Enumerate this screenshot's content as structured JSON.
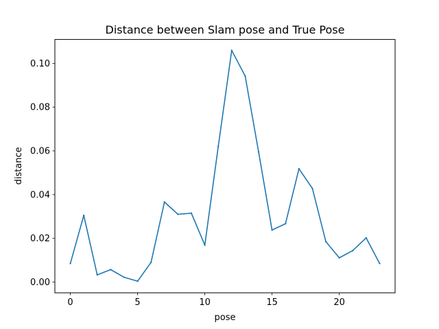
{
  "chart_data": {
    "type": "line",
    "title": "Distance between Slam pose and True Pose",
    "xlabel": "pose",
    "ylabel": "distance",
    "xlim": [
      -1.15,
      24.15
    ],
    "ylim": [
      -0.0049,
      0.1109
    ],
    "grid": false,
    "legend": "none",
    "x_ticks": [
      0,
      5,
      10,
      15,
      20
    ],
    "x_tick_labels": [
      "0",
      "5",
      "10",
      "15",
      "20"
    ],
    "y_ticks": [
      0.0,
      0.02,
      0.04,
      0.06,
      0.08,
      0.1
    ],
    "y_tick_labels": [
      "0.00",
      "0.02",
      "0.04",
      "0.06",
      "0.08",
      "0.10"
    ],
    "series": [
      {
        "color": "#1f77b4",
        "x": [
          0,
          1,
          2,
          3,
          4,
          5,
          6,
          7,
          8,
          9,
          10,
          11,
          12,
          13,
          14,
          15,
          16,
          17,
          18,
          19,
          20,
          21,
          22,
          23
        ],
        "y": [
          0.0085,
          0.0305,
          0.0033,
          0.0057,
          0.0022,
          0.0004,
          0.009,
          0.0366,
          0.031,
          0.0315,
          0.0169,
          0.062,
          0.1059,
          0.0942,
          0.0595,
          0.0238,
          0.0267,
          0.0518,
          0.0428,
          0.0185,
          0.0111,
          0.0144,
          0.0202,
          0.0085
        ]
      }
    ]
  }
}
